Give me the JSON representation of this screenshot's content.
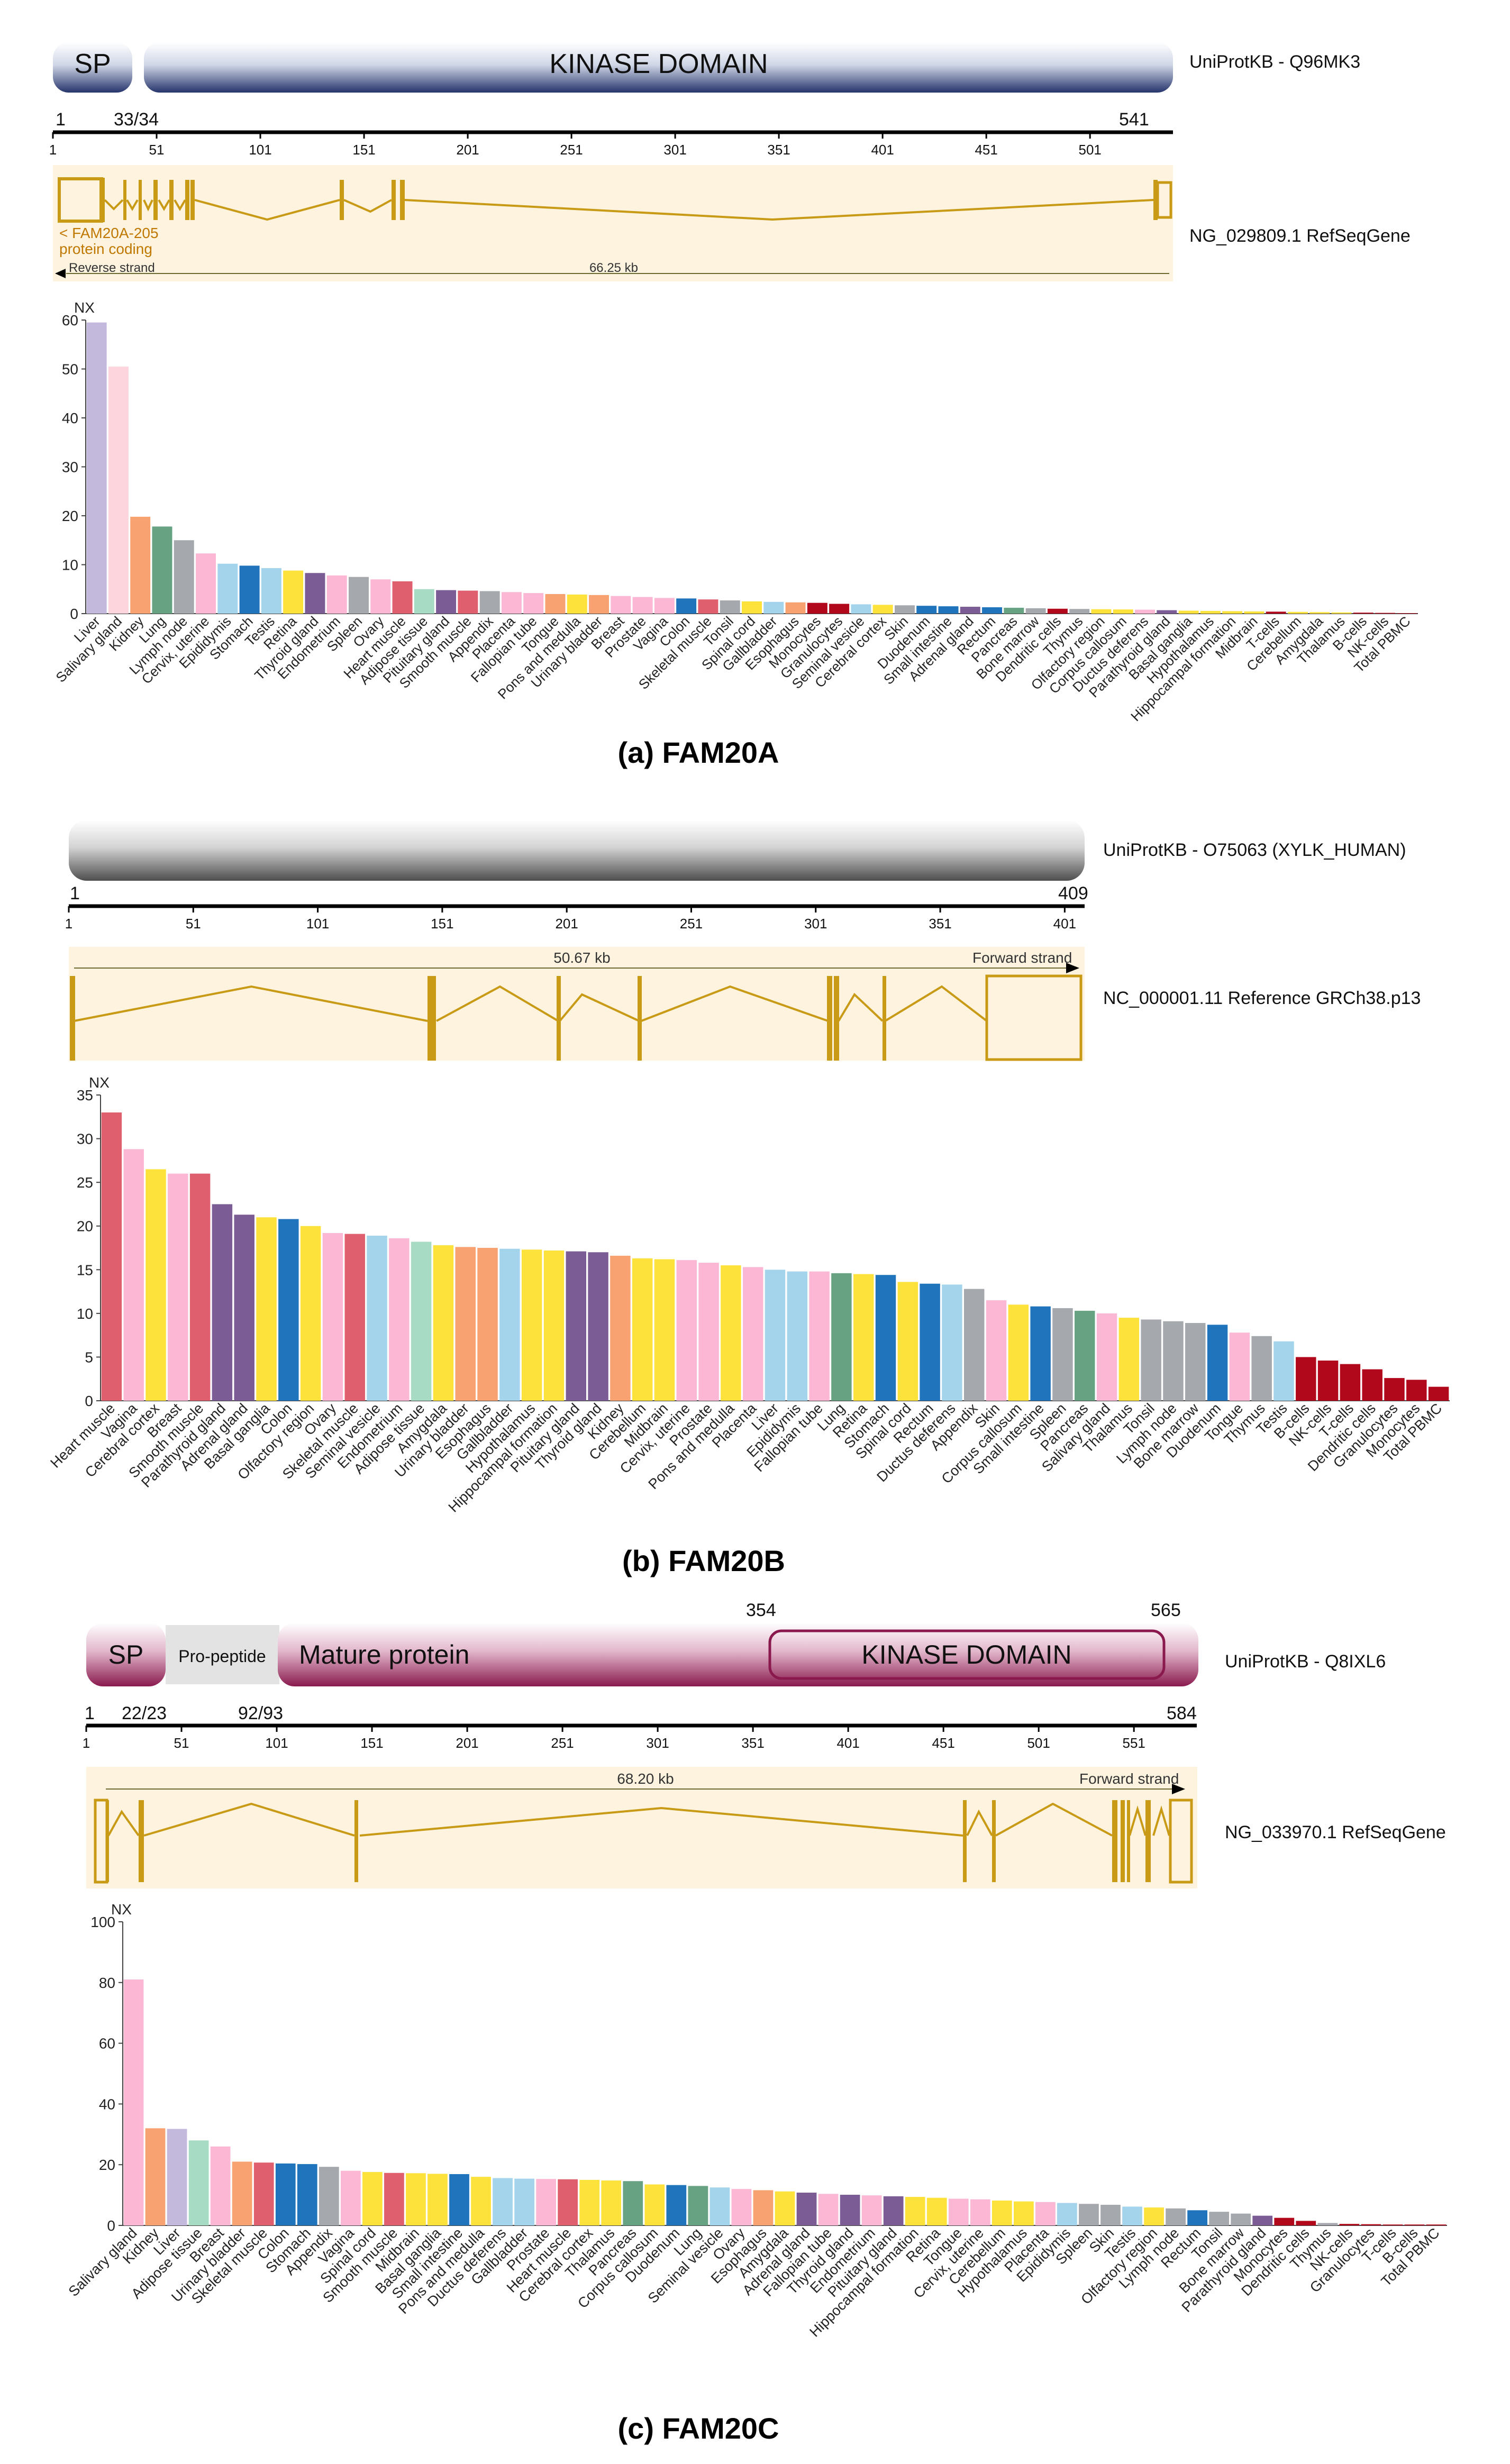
{
  "panels": [
    {
      "caption": "(a) FAM20A",
      "protein": {
        "database_label": "UniProtKB - Q96MK3",
        "length": 541,
        "axis_ticks": [
          1,
          51,
          101,
          151,
          201,
          251,
          301,
          351,
          401,
          451,
          501
        ],
        "above_axis_labels": [
          "1",
          "33/34",
          "541"
        ],
        "domains": [
          {
            "label": "SP",
            "start": 1,
            "end": 33,
            "color": "#25346b"
          },
          {
            "label": "KINASE DOMAIN",
            "start": 34,
            "end": 541,
            "color": "#25346b"
          }
        ]
      },
      "gene": {
        "label": "NG_029809.1 RefSeqGene",
        "transcript": "< FAM20A-205",
        "biotype": "protein coding",
        "strand": "Reverse strand",
        "size": "66.25 kb"
      }
    },
    {
      "caption": "(b) FAM20B",
      "protein": {
        "database_label": "UniProtKB - O75063 (XYLK_HUMAN)",
        "length": 409,
        "axis_ticks": [
          1,
          51,
          101,
          151,
          201,
          251,
          301,
          351,
          401
        ],
        "above_axis_labels": [
          "1",
          "409"
        ],
        "domains": [
          {
            "label": "",
            "start": 1,
            "end": 409,
            "color": "#555555"
          }
        ]
      },
      "gene": {
        "label": "NC_000001.11 Reference GRCh38.p13",
        "strand": "Forward strand",
        "size": "50.67 kb"
      }
    },
    {
      "caption": "(c) FAM20C",
      "protein": {
        "database_label": "UniProtKB - Q8IXL6",
        "length": 584,
        "axis_ticks": [
          1,
          51,
          101,
          151,
          201,
          251,
          301,
          351,
          401,
          451,
          501,
          551
        ],
        "above_axis_labels": [
          "1",
          "22/23",
          "92/93",
          "584"
        ],
        "top_labels": [
          "354",
          "565"
        ],
        "domains": [
          {
            "label": "SP",
            "start": 1,
            "end": 22,
            "color": "#8a1a4e"
          },
          {
            "label": "Pro-peptide",
            "start": 23,
            "end": 92,
            "color": "#e0e0e0"
          },
          {
            "label": "Mature protein",
            "start": 93,
            "end": 584,
            "color": "#8a1a4e"
          },
          {
            "label": "KINASE DOMAIN",
            "start": 354,
            "end": 565,
            "color": "#8a1a4e"
          }
        ]
      },
      "gene": {
        "label": "NG_033970.1 RefSeqGene",
        "strand": "Forward strand",
        "size": "68.20 kb"
      }
    }
  ],
  "chart_data": [
    {
      "type": "bar",
      "ylabel": "NX",
      "ylim": [
        0,
        60
      ],
      "yticks": [
        0,
        10,
        20,
        30,
        40,
        50,
        60
      ],
      "categories": [
        "Liver",
        "Salivary gland",
        "Kidney",
        "Lung",
        "Lymph node",
        "Cervix, uterine",
        "Epididymis",
        "Stomach",
        "Testis",
        "Retina",
        "Thyroid gland",
        "Endometrium",
        "Spleen",
        "Ovary",
        "Heart muscle",
        "Adipose tissue",
        "Pituitary gland",
        "Smooth muscle",
        "Appendix",
        "Placenta",
        "Fallopian tube",
        "Tongue",
        "Pons and medulla",
        "Urinary bladder",
        "Breast",
        "Prostate",
        "Vagina",
        "Colon",
        "Skeletal muscle",
        "Tonsil",
        "Spinal cord",
        "Gallbladder",
        "Esophagus",
        "Monocytes",
        "Granulocytes",
        "Seminal vesicle",
        "Cerebral cortex",
        "Skin",
        "Duodenum",
        "Small intestine",
        "Adrenal gland",
        "Rectum",
        "Pancreas",
        "Bone marrow",
        "Dendritic cells",
        "Thymus",
        "Olfactory region",
        "Corpus callosum",
        "Ductus deferens",
        "Parathyroid gland",
        "Basal ganglia",
        "Hypothalamus",
        "Hippocampal formation",
        "Midbrain",
        "T-cells",
        "Cerebellum",
        "Amygdala",
        "Thalamus",
        "B-cells",
        "NK-cells",
        "Total PBMC"
      ],
      "values": [
        59.5,
        50.5,
        19.8,
        17.8,
        15,
        12.3,
        10.2,
        9.8,
        9.3,
        8.8,
        8.3,
        7.8,
        7.5,
        7.0,
        6.6,
        5.0,
        4.8,
        4.7,
        4.6,
        4.4,
        4.2,
        4.0,
        3.9,
        3.8,
        3.6,
        3.4,
        3.2,
        3.1,
        2.9,
        2.7,
        2.5,
        2.4,
        2.3,
        2.2,
        2.0,
        1.9,
        1.8,
        1.7,
        1.6,
        1.5,
        1.4,
        1.3,
        1.2,
        1.1,
        1.0,
        0.95,
        0.9,
        0.85,
        0.8,
        0.7,
        0.6,
        0.55,
        0.5,
        0.45,
        0.4,
        0.35,
        0.3,
        0.25,
        0.2,
        0.15,
        0.1
      ],
      "colors": [
        "#c3b9dc",
        "#fdd5dc",
        "#f8a171",
        "#67a383",
        "#a5a8ad",
        "#fbb7d3",
        "#a4d4ec",
        "#1f74bb",
        "#a4d4ec",
        "#fde23b",
        "#7b5c95",
        "#fbb7d3",
        "#a5a8ad",
        "#fbb7d3",
        "#e05f6e",
        "#a7dbc4",
        "#7b5c95",
        "#e05f6e",
        "#a5a8ad",
        "#fbb7d3",
        "#fbb7d3",
        "#f8a171",
        "#fde23b",
        "#f8a171",
        "#fbb7d3",
        "#fbb7d3",
        "#fbb7d3",
        "#1f74bb",
        "#e05f6e",
        "#a5a8ad",
        "#fde23b",
        "#a4d4ec",
        "#f8a171",
        "#b2081c",
        "#b2081c",
        "#a4d4ec",
        "#fde23b",
        "#a5a8ad",
        "#1f74bb",
        "#1f74bb",
        "#7b5c95",
        "#1f74bb",
        "#67a383",
        "#a5a8ad",
        "#b2081c",
        "#a5a8ad",
        "#fde23b",
        "#fde23b",
        "#fbb7d3",
        "#7b5c95",
        "#fde23b",
        "#fde23b",
        "#fde23b",
        "#fde23b",
        "#b2081c",
        "#fde23b",
        "#fde23b",
        "#fde23b",
        "#b2081c",
        "#b2081c",
        "#b2081c"
      ]
    },
    {
      "type": "bar",
      "ylabel": "NX",
      "ylim": [
        0,
        35
      ],
      "yticks": [
        0,
        5,
        10,
        15,
        20,
        25,
        30,
        35
      ],
      "categories": [
        "Heart muscle",
        "Vagina",
        "Cerebral cortex",
        "Breast",
        "Smooth muscle",
        "Parathyroid gland",
        "Adrenal gland",
        "Basal ganglia",
        "Colon",
        "Olfactory region",
        "Ovary",
        "Skeletal muscle",
        "Seminal vesicle",
        "Endometrium",
        "Adipose tissue",
        "Amygdala",
        "Urinary bladder",
        "Esophagus",
        "Gallbladder",
        "Hypothalamus",
        "Hippocampal formation",
        "Pituitary gland",
        "Thyroid gland",
        "Kidney",
        "Cerebellum",
        "Midbrain",
        "Cervix, uterine",
        "Prostate",
        "Pons and medulla",
        "Placenta",
        "Liver",
        "Epididymis",
        "Fallopian tube",
        "Lung",
        "Retina",
        "Stomach",
        "Spinal cord",
        "Rectum",
        "Ductus deferens",
        "Appendix",
        "Skin",
        "Corpus callosum",
        "Small intestine",
        "Spleen",
        "Pancreas",
        "Salivary gland",
        "Thalamus",
        "Tonsil",
        "Lymph node",
        "Bone marrow",
        "Duodenum",
        "Tongue",
        "Thymus",
        "Testis",
        "B-cells",
        "NK-cells",
        "T-cells",
        "Dendritic cells",
        "Granulocytes",
        "Monocytes",
        "Total PBMC"
      ],
      "values": [
        33,
        28.8,
        26.5,
        26,
        26,
        22.5,
        21.3,
        21,
        20.8,
        20,
        19.2,
        19.1,
        18.9,
        18.6,
        18.2,
        17.8,
        17.6,
        17.5,
        17.4,
        17.3,
        17.2,
        17.1,
        17,
        16.6,
        16.3,
        16.2,
        16.1,
        15.8,
        15.5,
        15.3,
        15,
        14.8,
        14.8,
        14.6,
        14.5,
        14.4,
        13.6,
        13.4,
        13.3,
        12.8,
        11.5,
        11,
        10.8,
        10.6,
        10.3,
        10,
        9.5,
        9.3,
        9.1,
        8.9,
        8.7,
        7.8,
        7.4,
        6.8,
        5,
        4.6,
        4.2,
        3.6,
        2.6,
        2.4,
        1.6
      ],
      "colors": [
        "#e05f6e",
        "#fbb7d3",
        "#fde23b",
        "#fbb7d3",
        "#e05f6e",
        "#7b5c95",
        "#7b5c95",
        "#fde23b",
        "#1f74bb",
        "#fde23b",
        "#fbb7d3",
        "#e05f6e",
        "#a4d4ec",
        "#fbb7d3",
        "#a7dbc4",
        "#fde23b",
        "#f8a171",
        "#f8a171",
        "#a4d4ec",
        "#fde23b",
        "#fde23b",
        "#7b5c95",
        "#7b5c95",
        "#f8a171",
        "#fde23b",
        "#fde23b",
        "#fbb7d3",
        "#fbb7d3",
        "#fde23b",
        "#fbb7d3",
        "#a4d4ec",
        "#a4d4ec",
        "#fbb7d3",
        "#67a383",
        "#fde23b",
        "#1f74bb",
        "#fde23b",
        "#1f74bb",
        "#a4d4ec",
        "#a5a8ad",
        "#fbb7d3",
        "#fde23b",
        "#1f74bb",
        "#a5a8ad",
        "#67a383",
        "#fbb7d3",
        "#fde23b",
        "#a5a8ad",
        "#a5a8ad",
        "#a5a8ad",
        "#1f74bb",
        "#fbb7d3",
        "#a5a8ad",
        "#a4d4ec",
        "#b2081c",
        "#b2081c",
        "#b2081c",
        "#b2081c",
        "#b2081c",
        "#b2081c",
        "#b2081c"
      ]
    },
    {
      "type": "bar",
      "ylabel": "NX",
      "ylim": [
        0,
        100
      ],
      "yticks": [
        0,
        20,
        40,
        60,
        80,
        100
      ],
      "categories": [
        "Salivary gland",
        "Kidney",
        "Liver",
        "Adipose tissue",
        "Breast",
        "Urinary bladder",
        "Skeletal muscle",
        "Colon",
        "Stomach",
        "Appendix",
        "Vagina",
        "Spinal cord",
        "Smooth muscle",
        "Midbrain",
        "Basal ganglia",
        "Small intestine",
        "Pons and medulla",
        "Ductus deferens",
        "Gallbladder",
        "Prostate",
        "Heart muscle",
        "Cerebral cortex",
        "Thalamus",
        "Pancreas",
        "Corpus callosum",
        "Duodenum",
        "Lung",
        "Seminal vesicle",
        "Ovary",
        "Esophagus",
        "Amygdala",
        "Adrenal gland",
        "Fallopian tube",
        "Thyroid gland",
        "Endometrium",
        "Pituitary gland",
        "Hippocampal formation",
        "Retina",
        "Tongue",
        "Cervix, uterine",
        "Cerebellum",
        "Hypothalamus",
        "Placenta",
        "Epididymis",
        "Spleen",
        "Skin",
        "Testis",
        "Olfactory region",
        "Lymph node",
        "Rectum",
        "Tonsil",
        "Bone marrow",
        "Parathyroid gland",
        "Monocytes",
        "Dendritic cells",
        "Thymus",
        "NK-cells",
        "Granulocytes",
        "T-cells",
        "B-cells",
        "Total PBMC"
      ],
      "values": [
        81,
        32,
        31.8,
        28,
        26,
        21,
        20.7,
        20.4,
        20.2,
        19.3,
        18,
        17.6,
        17.3,
        17.2,
        17,
        16.9,
        16,
        15.6,
        15.4,
        15.3,
        15.2,
        15,
        14.8,
        14.6,
        13.5,
        13.3,
        13,
        12.5,
        12,
        11.6,
        11.2,
        10.8,
        10.4,
        10.1,
        9.9,
        9.6,
        9.4,
        9.1,
        8.8,
        8.6,
        8.2,
        7.9,
        7.7,
        7.4,
        7.1,
        6.8,
        6.2,
        5.9,
        5.6,
        5,
        4.5,
        3.9,
        3.2,
        2.5,
        1.5,
        0.8,
        0.5,
        0.4,
        0.3,
        0.3,
        0.3
      ],
      "colors": [
        "#fbb7d3",
        "#f8a171",
        "#c3b9dc",
        "#a7dbc4",
        "#fbb7d3",
        "#f8a171",
        "#e05f6e",
        "#1f74bb",
        "#1f74bb",
        "#a5a8ad",
        "#fbb7d3",
        "#fde23b",
        "#e05f6e",
        "#fde23b",
        "#fde23b",
        "#1f74bb",
        "#fde23b",
        "#a4d4ec",
        "#a4d4ec",
        "#fbb7d3",
        "#e05f6e",
        "#fde23b",
        "#fde23b",
        "#67a383",
        "#fde23b",
        "#1f74bb",
        "#67a383",
        "#a4d4ec",
        "#fbb7d3",
        "#f8a171",
        "#fde23b",
        "#7b5c95",
        "#fbb7d3",
        "#7b5c95",
        "#fbb7d3",
        "#7b5c95",
        "#fde23b",
        "#fde23b",
        "#fbb7d3",
        "#fbb7d3",
        "#fde23b",
        "#fde23b",
        "#fbb7d3",
        "#a4d4ec",
        "#a5a8ad",
        "#a5a8ad",
        "#a4d4ec",
        "#fde23b",
        "#a5a8ad",
        "#1f74bb",
        "#a5a8ad",
        "#a5a8ad",
        "#7b5c95",
        "#b2081c",
        "#b2081c",
        "#a5a8ad",
        "#b2081c",
        "#b2081c",
        "#b2081c",
        "#b2081c",
        "#b2081c"
      ]
    }
  ]
}
